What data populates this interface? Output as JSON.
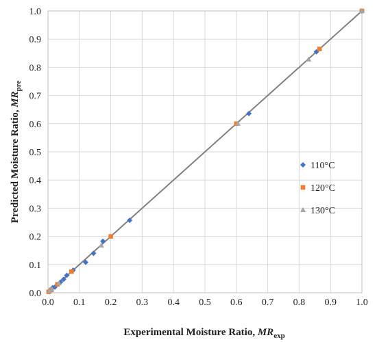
{
  "chart_data": {
    "type": "scatter",
    "xlabel_main": "Experimental Moisture Ratio, ",
    "xlabel_italic": "MR",
    "xlabel_sub": "exp",
    "ylabel_main": "Predicted Moisture Ratio, ",
    "ylabel_italic": "MR",
    "ylabel_sub": "pre",
    "xlim": [
      0,
      1
    ],
    "ylim": [
      0,
      1
    ],
    "xticks": [
      "0.0",
      "0.1",
      "0.2",
      "0.3",
      "0.4",
      "0.5",
      "0.6",
      "0.7",
      "0.8",
      "0.9",
      "1.0"
    ],
    "yticks": [
      "0.0",
      "0.1",
      "0.2",
      "0.3",
      "0.4",
      "0.5",
      "0.6",
      "0.7",
      "0.8",
      "0.9",
      "1.0"
    ],
    "grid": true,
    "legend_position": "right",
    "fit_line": {
      "x": [
        0,
        1
      ],
      "y": [
        0,
        1
      ],
      "color": "#808080"
    },
    "series": [
      {
        "name": "110°C",
        "marker": "diamond",
        "color": "#4472c4",
        "points": [
          [
            0.003,
            0.004
          ],
          [
            0.008,
            0.01
          ],
          [
            0.015,
            0.018
          ],
          [
            0.022,
            0.02
          ],
          [
            0.04,
            0.038
          ],
          [
            0.05,
            0.048
          ],
          [
            0.06,
            0.062
          ],
          [
            0.08,
            0.08
          ],
          [
            0.12,
            0.108
          ],
          [
            0.145,
            0.14
          ],
          [
            0.175,
            0.183
          ],
          [
            0.26,
            0.257
          ],
          [
            0.64,
            0.636
          ],
          [
            0.855,
            0.855
          ],
          [
            1.0,
            1.0
          ]
        ]
      },
      {
        "name": "120°C",
        "marker": "square",
        "color": "#ed7d31",
        "points": [
          [
            0.002,
            0.003
          ],
          [
            0.01,
            0.01
          ],
          [
            0.03,
            0.03
          ],
          [
            0.075,
            0.075
          ],
          [
            0.2,
            0.2
          ],
          [
            0.6,
            0.6
          ],
          [
            0.865,
            0.865
          ],
          [
            1.0,
            1.0
          ]
        ]
      },
      {
        "name": "130°C",
        "marker": "triangle",
        "color": "#a5a5a5",
        "points": [
          [
            0.004,
            0.005
          ],
          [
            0.012,
            0.012
          ],
          [
            0.035,
            0.034
          ],
          [
            0.17,
            0.168
          ],
          [
            0.605,
            0.6
          ],
          [
            0.83,
            0.828
          ],
          [
            1.0,
            1.0
          ]
        ]
      }
    ]
  }
}
